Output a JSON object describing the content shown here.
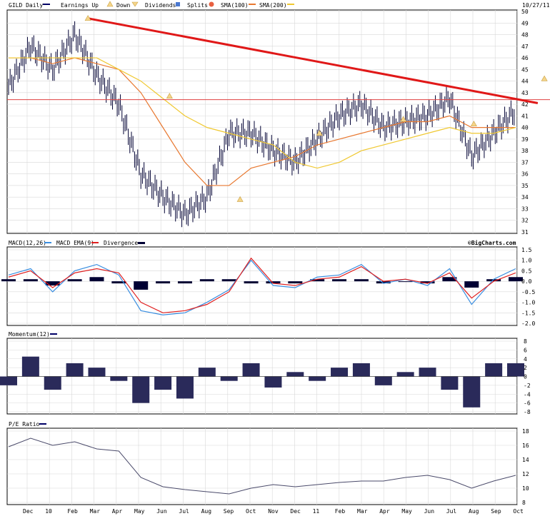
{
  "chart_data": [
    {
      "type": "line",
      "panel": "price",
      "title": "GILD Daily",
      "date": "10/27/11",
      "legend": [
        "Earnings Up",
        "Down",
        "Dividends",
        "Splits",
        "SMA(100)",
        "SMA(200)"
      ],
      "ylim": [
        31,
        50
      ],
      "yticks": [
        31,
        32,
        33,
        34,
        35,
        36,
        37,
        38,
        39,
        40,
        41,
        42,
        43,
        44,
        45,
        46,
        47,
        48,
        49,
        50
      ],
      "xticks": [
        "Dec",
        "10",
        "Feb",
        "Mar",
        "Apr",
        "May",
        "Jun",
        "Jul",
        "Aug",
        "Sep",
        "Oct",
        "Nov",
        "Dec",
        "11",
        "Feb",
        "Mar",
        "Apr",
        "May",
        "Jun",
        "Jul",
        "Aug",
        "Sep",
        "Oct"
      ],
      "x_index": [
        0,
        1,
        2,
        3,
        4,
        5,
        6,
        7,
        8,
        9,
        10,
        11,
        12,
        13,
        14,
        15,
        16,
        17,
        18,
        19,
        20,
        21,
        22,
        23
      ],
      "price": [
        43.5,
        47,
        45,
        48,
        44.5,
        42,
        36,
        34,
        32.5,
        34,
        39.5,
        39.5,
        38,
        37,
        39,
        41,
        42,
        40,
        40.5,
        41,
        42.5,
        37.5,
        39.5,
        41.5
      ],
      "sma100": [
        46,
        46,
        45.5,
        46,
        45.5,
        45,
        43,
        40,
        37,
        35,
        35,
        36.5,
        37,
        37.5,
        38.5,
        39,
        39.5,
        40,
        40.5,
        40.5,
        41,
        40,
        40,
        40
      ],
      "sma200": [
        46,
        46,
        46,
        46,
        46,
        45,
        44,
        42.5,
        41,
        40,
        39.5,
        39,
        38.5,
        37,
        36.5,
        37,
        38,
        38.5,
        39,
        39.5,
        40,
        39.5,
        39.5,
        40
      ],
      "trendline": [
        [
          3.6,
          49.4
        ],
        [
          24,
          42.1
        ]
      ],
      "hline": 42.4,
      "earnings_markers": [
        {
          "x": 3.6,
          "y": 49.4
        },
        {
          "x": 7.3,
          "y": 42.7
        },
        {
          "x": 10.5,
          "y": 33.8
        },
        {
          "x": 14.1,
          "y": 39.5
        },
        {
          "x": 17.9,
          "y": 40.7
        },
        {
          "x": 21.1,
          "y": 40.3
        },
        {
          "x": 24.3,
          "y": 44.2
        }
      ]
    },
    {
      "type": "line",
      "panel": "macd",
      "title": "MACD(12,26)",
      "legend": [
        "MACD EMA(9)",
        "Divergence"
      ],
      "watermark": "©BigCharts.com",
      "ylim": [
        -2,
        1.5
      ],
      "ytick_labels": [
        "1.5",
        "1.0",
        "0.5",
        "0.0",
        "-0.5",
        "-1.0",
        "-1.5",
        "-2.0"
      ],
      "yticks": [
        1.5,
        1.0,
        0.5,
        0.0,
        -0.5,
        -1.0,
        -1.5,
        -2.0
      ],
      "macd": [
        0.3,
        0.6,
        -0.5,
        0.5,
        0.8,
        0.3,
        -1.4,
        -1.6,
        -1.5,
        -1.0,
        -0.4,
        1.0,
        -0.2,
        -0.3,
        0.2,
        0.3,
        0.8,
        -0.1,
        0.1,
        -0.2,
        0.6,
        -1.1,
        0.1,
        0.6
      ],
      "signal": [
        0.2,
        0.5,
        -0.3,
        0.4,
        0.6,
        0.4,
        -1.0,
        -1.5,
        -1.4,
        -1.1,
        -0.5,
        1.1,
        -0.1,
        -0.2,
        0.1,
        0.2,
        0.7,
        0.0,
        0.1,
        -0.1,
        0.4,
        -0.8,
        0.0,
        0.4
      ],
      "divergence": [
        0.1,
        0.1,
        -0.2,
        0.1,
        0.2,
        -0.1,
        -0.4,
        -0.1,
        -0.1,
        0.1,
        0.1,
        -0.1,
        -0.1,
        -0.1,
        0.1,
        0.1,
        0.1,
        -0.1,
        0.0,
        -0.1,
        0.2,
        -0.3,
        0.1,
        0.2
      ]
    },
    {
      "type": "bar",
      "panel": "momentum",
      "title": "Momentum(12)",
      "ylim": [
        -8,
        8
      ],
      "ytick_labels": [
        "8",
        "6",
        "4",
        "2",
        "0",
        "-2",
        "-4",
        "-6",
        "-8"
      ],
      "yticks": [
        8,
        6,
        4,
        2,
        0,
        -2,
        -4,
        -6,
        -8
      ],
      "values": [
        -2,
        4.5,
        -3,
        3,
        2,
        -1,
        -6,
        -3,
        -5,
        2,
        -1,
        3,
        -2.5,
        1,
        -1,
        2,
        3,
        -2,
        1,
        2,
        -3,
        -7,
        3,
        3
      ]
    },
    {
      "type": "line",
      "panel": "pe",
      "title": "P/E Ratio",
      "ylim": [
        8,
        18
      ],
      "ytick_labels": [
        "18",
        "16",
        "14",
        "12",
        "10",
        "8"
      ],
      "yticks": [
        18,
        16,
        14,
        12,
        10,
        8
      ],
      "values": [
        15.8,
        17,
        16,
        16.5,
        15.5,
        15.2,
        11.5,
        10.2,
        9.8,
        9.5,
        9.2,
        10,
        10.5,
        10.2,
        10.5,
        10.8,
        11,
        11,
        11.5,
        11.8,
        11.2,
        10,
        11,
        11.8
      ]
    }
  ]
}
